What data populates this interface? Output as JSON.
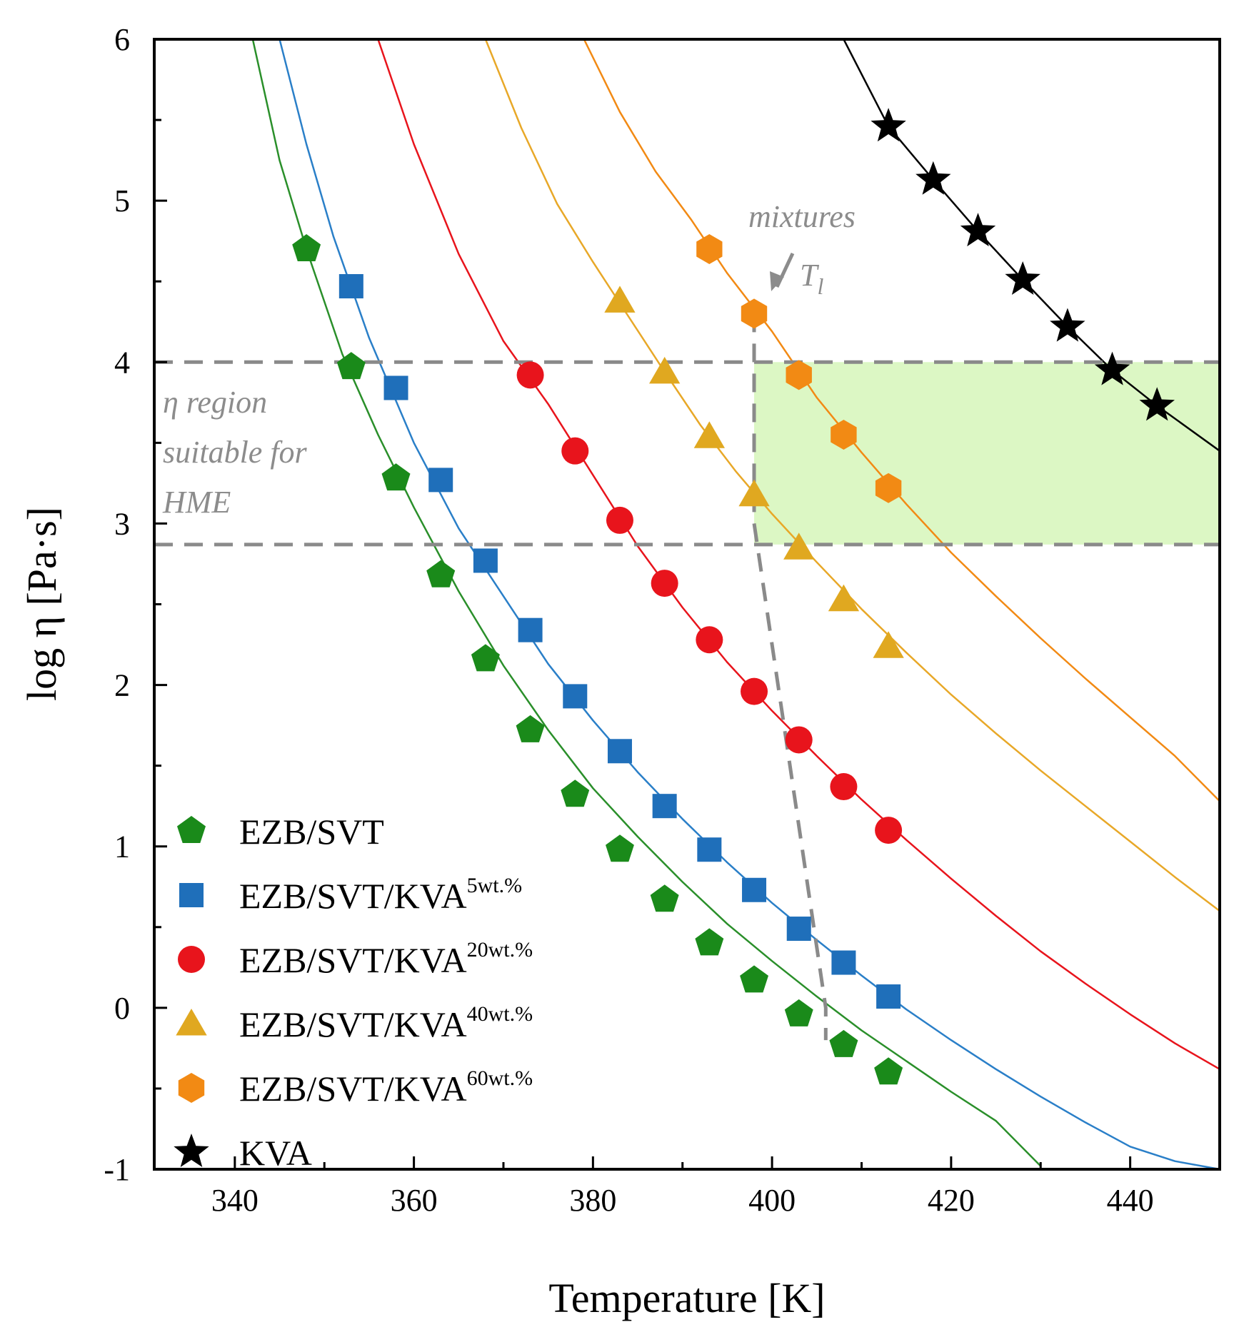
{
  "chart_data": {
    "type": "scatter",
    "xlabel": "Temperature [K]",
    "ylabel": "log η [Pa·s]",
    "xlim": [
      331,
      450
    ],
    "ylim": [
      -1,
      6
    ],
    "x_ticks": [
      340,
      360,
      380,
      400,
      420,
      440
    ],
    "y_ticks": [
      -1,
      0,
      1,
      2,
      3,
      4,
      5,
      6
    ],
    "x_tick_labels": [
      "340",
      "360",
      "380",
      "400",
      "420",
      "440"
    ],
    "y_tick_labels": [
      "-1",
      "0",
      "1",
      "2",
      "3",
      "4",
      "5",
      "6"
    ],
    "grid": false,
    "legend_position": "bottom-left",
    "series": [
      {
        "name": "EZB/SVT",
        "name_base": "EZB/SVT",
        "name_sup": "",
        "marker": "pentagon",
        "color": "#1a8a1a",
        "line_color": "#2a8f2a",
        "x": [
          348,
          353,
          358,
          363,
          368,
          373,
          378,
          383,
          388,
          393,
          398,
          403,
          408,
          413
        ],
        "y": [
          4.7,
          3.97,
          3.28,
          2.68,
          2.16,
          1.72,
          1.32,
          0.98,
          0.67,
          0.4,
          0.17,
          -0.04,
          -0.23,
          -0.4
        ],
        "fit_x": [
          342,
          345,
          348,
          352,
          356,
          360,
          365,
          370,
          375,
          380,
          385,
          390,
          395,
          400,
          405,
          410,
          415,
          420,
          425,
          430
        ],
        "fit_y": [
          6.0,
          5.25,
          4.7,
          4.05,
          3.55,
          3.1,
          2.58,
          2.12,
          1.72,
          1.36,
          1.06,
          0.78,
          0.52,
          0.29,
          0.07,
          -0.14,
          -0.33,
          -0.52,
          -0.7,
          -0.98
        ]
      },
      {
        "name": "EZB/SVT/KVA5wt.%",
        "name_base": "EZB/SVT/KVA",
        "name_sup": "5wt.%",
        "marker": "square",
        "color": "#1f6fba",
        "line_color": "#2a7fc8",
        "x": [
          353,
          358,
          363,
          368,
          373,
          378,
          383,
          388,
          393,
          398,
          403,
          408,
          413
        ],
        "y": [
          4.47,
          3.84,
          3.27,
          2.77,
          2.34,
          1.93,
          1.59,
          1.25,
          0.98,
          0.73,
          0.49,
          0.28,
          0.07
        ],
        "fit_x": [
          345,
          348,
          351,
          355,
          360,
          365,
          370,
          375,
          380,
          385,
          390,
          395,
          400,
          405,
          410,
          415,
          420,
          425,
          430,
          435,
          440,
          445,
          450
        ],
        "fit_y": [
          6.0,
          5.35,
          4.78,
          4.15,
          3.5,
          2.97,
          2.55,
          2.13,
          1.78,
          1.46,
          1.17,
          0.9,
          0.65,
          0.42,
          0.2,
          -0.01,
          -0.2,
          -0.38,
          -0.55,
          -0.71,
          -0.86,
          -0.95,
          -1.0
        ]
      },
      {
        "name": "EZB/SVT/KVA20wt.%",
        "name_base": "EZB/SVT/KVA",
        "name_sup": "20wt.%",
        "marker": "circle",
        "color": "#e8141c",
        "line_color": "#e8141c",
        "x": [
          373,
          378,
          383,
          388,
          393,
          398,
          403,
          408,
          413
        ],
        "y": [
          3.92,
          3.45,
          3.02,
          2.63,
          2.28,
          1.96,
          1.66,
          1.37,
          1.1
        ],
        "fit_x": [
          356,
          360,
          365,
          370,
          375,
          380,
          385,
          390,
          395,
          400,
          405,
          410,
          415,
          420,
          425,
          430,
          435,
          440,
          445,
          450
        ],
        "fit_y": [
          6.0,
          5.35,
          4.67,
          4.13,
          3.74,
          3.3,
          2.86,
          2.48,
          2.14,
          1.84,
          1.56,
          1.29,
          1.04,
          0.8,
          0.57,
          0.35,
          0.15,
          -0.04,
          -0.22,
          -0.38
        ]
      },
      {
        "name": "EZB/SVT/KVA40wt.%",
        "name_base": "EZB/SVT/KVA",
        "name_sup": "40wt.%",
        "marker": "triangle",
        "color": "#e0a820",
        "line_color": "#e8a828",
        "x": [
          383,
          388,
          393,
          398,
          403,
          408,
          413
        ],
        "y": [
          4.38,
          3.94,
          3.54,
          3.18,
          2.85,
          2.53,
          2.24
        ],
        "fit_x": [
          368,
          372,
          376,
          380,
          384,
          388,
          392,
          396,
          400,
          405,
          410,
          415,
          420,
          425,
          430,
          435,
          440,
          445,
          450
        ],
        "fit_y": [
          6.0,
          5.45,
          4.98,
          4.62,
          4.28,
          3.94,
          3.61,
          3.32,
          3.06,
          2.76,
          2.47,
          2.2,
          1.94,
          1.7,
          1.47,
          1.25,
          1.03,
          0.81,
          0.6
        ]
      },
      {
        "name": "EZB/SVT/KVA60wt.%",
        "name_base": "EZB/SVT/KVA",
        "name_sup": "60wt.%",
        "marker": "hexagon",
        "color": "#f28a14",
        "line_color": "#f28a14",
        "x": [
          393,
          398,
          403,
          408,
          413
        ],
        "y": [
          4.7,
          4.3,
          3.92,
          3.55,
          3.22
        ],
        "fit_x": [
          379,
          383,
          387,
          391,
          395,
          400,
          405,
          410,
          415,
          420,
          425,
          430,
          435,
          440,
          445,
          450
        ],
        "fit_y": [
          6.0,
          5.55,
          5.18,
          4.88,
          4.55,
          4.19,
          3.78,
          3.44,
          3.12,
          2.82,
          2.55,
          2.29,
          2.04,
          1.8,
          1.56,
          1.28
        ]
      },
      {
        "name": "KVA",
        "name_base": "KVA",
        "name_sup": "",
        "marker": "star",
        "color": "#000000",
        "line_color": "#000000",
        "x": [
          413,
          418,
          423,
          428,
          433,
          438,
          443
        ],
        "y": [
          5.46,
          5.13,
          4.81,
          4.51,
          4.22,
          3.95,
          3.73
        ],
        "fit_x": [
          408,
          413,
          418,
          423,
          428,
          433,
          438,
          443,
          450
        ],
        "fit_y": [
          6.0,
          5.46,
          5.13,
          4.81,
          4.51,
          4.22,
          3.95,
          3.73,
          3.45
        ]
      }
    ],
    "hme_region": {
      "y_min": 2.87,
      "y_max": 4.0,
      "x_min": 398,
      "x_max": 450,
      "fill": "#dcf7c4"
    },
    "dashed_lines_y": [
      4.0,
      2.87
    ],
    "tl_boundary": {
      "x": [
        398,
        398,
        402,
        406,
        406
      ],
      "y": [
        4.3,
        3.0,
        1.5,
        0.0,
        -0.2
      ]
    },
    "annotations": {
      "hme_line1": "η region",
      "hme_line2": "suitable for",
      "hme_line3": "HME",
      "mixtures": "mixtures",
      "tl_main": "T",
      "tl_sub": "l"
    }
  }
}
